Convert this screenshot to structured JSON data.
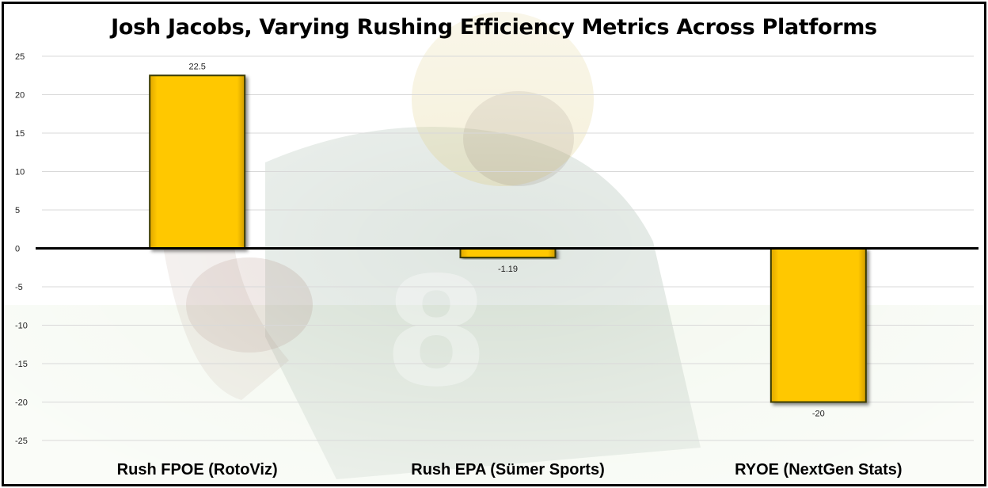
{
  "chart_data": {
    "type": "bar",
    "title": "Josh Jacobs, Varying Rushing Efficiency Metrics Across Platforms",
    "categories": [
      "Rush FPOE (RotoViz)",
      "Rush EPA (Sümer Sports)",
      "RYOE (NextGen Stats)"
    ],
    "values": [
      22.5,
      -1.19,
      -20
    ],
    "data_labels": [
      "22.5",
      "-1.19",
      "-20"
    ],
    "ylim": [
      -25,
      25
    ],
    "yticks": [
      25,
      20,
      15,
      10,
      5,
      0,
      -5,
      -10,
      -15,
      -20,
      -25
    ],
    "grid": true,
    "legend": "none",
    "bar_color": "#FFC800",
    "bar_edge_color": "#3a3a00",
    "background_image": "green-bay-packers-player-illustration"
  }
}
